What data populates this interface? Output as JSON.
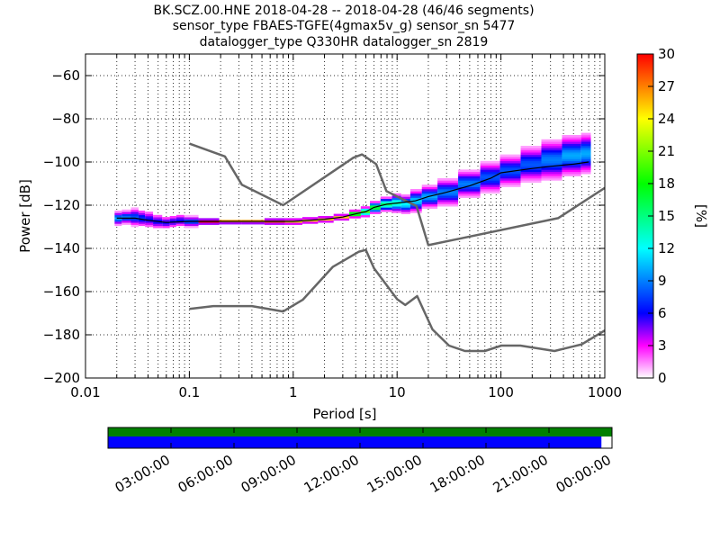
{
  "chart_data": {
    "type": "heatmap",
    "title_lines": [
      "BK.SCZ.00.HNE   2018-04-28 -- 2018-04-28  (46/46 segments)",
      "sensor_type FBAES-TGFE(4gmax5v_g) sensor_sn 5477",
      "datalogger_type Q330HR datalogger_sn 2819"
    ],
    "xlabel": "Period [s]",
    "ylabel": "Power [dB]",
    "x_scale": "log",
    "xlim": [
      0.01,
      1000
    ],
    "ylim": [
      -200,
      -50
    ],
    "x_ticks": [
      {
        "value": 0.01,
        "label": "0.01"
      },
      {
        "value": 0.1,
        "label": "0.1"
      },
      {
        "value": 1,
        "label": "1"
      },
      {
        "value": 10,
        "label": "10"
      },
      {
        "value": 100,
        "label": "100"
      },
      {
        "value": 1000,
        "label": "1000"
      }
    ],
    "y_ticks": [
      {
        "value": -60,
        "label": "−60"
      },
      {
        "value": -80,
        "label": "−80"
      },
      {
        "value": -100,
        "label": "−100"
      },
      {
        "value": -120,
        "label": "−120"
      },
      {
        "value": -140,
        "label": "−140"
      },
      {
        "value": -160,
        "label": "−160"
      },
      {
        "value": -180,
        "label": "−180"
      },
      {
        "value": -200,
        "label": "−200"
      }
    ],
    "grid": true,
    "colorbar": {
      "label": "[%]",
      "range": [
        0,
        30
      ],
      "ticks": [
        {
          "value": 0,
          "label": "0"
        },
        {
          "value": 3,
          "label": "3"
        },
        {
          "value": 6,
          "label": "6"
        },
        {
          "value": 9,
          "label": "9"
        },
        {
          "value": 12,
          "label": "12"
        },
        {
          "value": 15,
          "label": "15"
        },
        {
          "value": 18,
          "label": "18"
        },
        {
          "value": 21,
          "label": "21"
        },
        {
          "value": 24,
          "label": "24"
        },
        {
          "value": 27,
          "label": "27"
        },
        {
          "value": 30,
          "label": "30"
        }
      ]
    },
    "noise_models": [
      {
        "points": [
          [
            0.1,
            -91.5
          ],
          [
            0.22,
            -97.4
          ],
          [
            0.32,
            -110.5
          ],
          [
            0.8,
            -120
          ],
          [
            3.8,
            -98
          ],
          [
            4.6,
            -96.5
          ],
          [
            6.3,
            -101
          ],
          [
            7.9,
            -113.5
          ],
          [
            15.4,
            -120.4
          ],
          [
            20,
            -138.5
          ],
          [
            354.8,
            -126
          ],
          [
            1000,
            -112
          ]
        ]
      },
      {
        "points": [
          [
            0.1,
            -168
          ],
          [
            0.17,
            -166.7
          ],
          [
            0.4,
            -166.7
          ],
          [
            0.8,
            -169.2
          ],
          [
            1.24,
            -163.7
          ],
          [
            2.4,
            -148.6
          ],
          [
            4.3,
            -141.5
          ],
          [
            5,
            -140.7
          ],
          [
            6,
            -149.2
          ],
          [
            10,
            -163.5
          ],
          [
            12,
            -166.2
          ],
          [
            15.6,
            -162.1
          ],
          [
            21.9,
            -177.5
          ],
          [
            31.6,
            -185
          ],
          [
            45,
            -187.5
          ],
          [
            70,
            -187.5
          ],
          [
            101,
            -185
          ],
          [
            154,
            -185
          ],
          [
            328,
            -187.5
          ],
          [
            600,
            -184.4
          ],
          [
            1000,
            -178
          ]
        ]
      }
    ],
    "mode": {
      "points": [
        [
          0.02,
          -126
        ],
        [
          0.03,
          -126
        ],
        [
          0.04,
          -127
        ],
        [
          0.06,
          -128
        ],
        [
          0.1,
          -127.5
        ],
        [
          0.3,
          -127.5
        ],
        [
          1,
          -127.5
        ],
        [
          2,
          -126.5
        ],
        [
          3,
          -125.5
        ],
        [
          4,
          -124
        ],
        [
          5,
          -123
        ],
        [
          6,
          -121
        ],
        [
          8,
          -119.5
        ],
        [
          10,
          -119
        ],
        [
          15,
          -118
        ],
        [
          20,
          -116
        ],
        [
          30,
          -114
        ],
        [
          50,
          -111
        ],
        [
          80,
          -107.5
        ],
        [
          100,
          -105
        ],
        [
          200,
          -103
        ],
        [
          300,
          -102
        ],
        [
          500,
          -101
        ],
        [
          700,
          -100
        ]
      ]
    },
    "ppsd_spread": [
      {
        "x": 0.02,
        "y": -126,
        "spread": 3,
        "peak": 10
      },
      {
        "x": 0.025,
        "y": -125.5,
        "spread": 3,
        "peak": 9
      },
      {
        "x": 0.03,
        "y": -125.5,
        "spread": 4,
        "peak": 8
      },
      {
        "x": 0.035,
        "y": -126,
        "spread": 4,
        "peak": 7
      },
      {
        "x": 0.04,
        "y": -126.5,
        "spread": 4,
        "peak": 6
      },
      {
        "x": 0.05,
        "y": -127.5,
        "spread": 3.5,
        "peak": 6
      },
      {
        "x": 0.06,
        "y": -128,
        "spread": 3,
        "peak": 6
      },
      {
        "x": 0.07,
        "y": -127.5,
        "spread": 3,
        "peak": 6
      },
      {
        "x": 0.08,
        "y": -127,
        "spread": 3,
        "peak": 6
      },
      {
        "x": 0.1,
        "y": -127.5,
        "spread": 2.5,
        "peak": 8
      },
      {
        "x": 0.15,
        "y": -127.5,
        "spread": 1,
        "peak": 30
      },
      {
        "x": 0.25,
        "y": -127.5,
        "spread": 0.8,
        "peak": 30
      },
      {
        "x": 0.4,
        "y": -127.5,
        "spread": 0.8,
        "peak": 30
      },
      {
        "x": 0.7,
        "y": -127.5,
        "spread": 1,
        "peak": 28
      },
      {
        "x": 1,
        "y": -127.5,
        "spread": 1,
        "peak": 25
      },
      {
        "x": 1.5,
        "y": -127,
        "spread": 1,
        "peak": 25
      },
      {
        "x": 2,
        "y": -126.5,
        "spread": 1,
        "peak": 25
      },
      {
        "x": 3,
        "y": -125.5,
        "spread": 1,
        "peak": 25
      },
      {
        "x": 4,
        "y": -124,
        "spread": 1.5,
        "peak": 22
      },
      {
        "x": 5,
        "y": -123,
        "spread": 2,
        "peak": 20
      },
      {
        "x": 6,
        "y": -121,
        "spread": 2.5,
        "peak": 18
      },
      {
        "x": 8,
        "y": -119.5,
        "spread": 3,
        "peak": 16
      },
      {
        "x": 10,
        "y": -119,
        "spread": 4,
        "peak": 14
      },
      {
        "x": 12,
        "y": -119.5,
        "spread": 4,
        "peak": 12
      },
      {
        "x": 15,
        "y": -118,
        "spread": 5,
        "peak": 11
      },
      {
        "x": 20,
        "y": -116,
        "spread": 5,
        "peak": 10
      },
      {
        "x": 30,
        "y": -114,
        "spread": 6,
        "peak": 9
      },
      {
        "x": 50,
        "y": -110,
        "spread": 6,
        "peak": 9
      },
      {
        "x": 80,
        "y": -107,
        "spread": 7,
        "peak": 8
      },
      {
        "x": 120,
        "y": -104,
        "spread": 7,
        "peak": 8
      },
      {
        "x": 200,
        "y": -101,
        "spread": 8,
        "peak": 8
      },
      {
        "x": 300,
        "y": -99,
        "spread": 9,
        "peak": 9
      },
      {
        "x": 500,
        "y": -97,
        "spread": 9,
        "peak": 10
      },
      {
        "x": 700,
        "y": -96,
        "spread": 9,
        "peak": 10
      }
    ],
    "coverage": {
      "time_ticks": [
        "03:00:00",
        "06:00:00",
        "09:00:00",
        "12:00:00",
        "15:00:00",
        "18:00:00",
        "21:00:00",
        "00:00:00"
      ],
      "processed_fraction": 1.0,
      "data_fraction": 0.979,
      "colors": {
        "processed": "#008000",
        "data": "#0000ff"
      }
    }
  }
}
